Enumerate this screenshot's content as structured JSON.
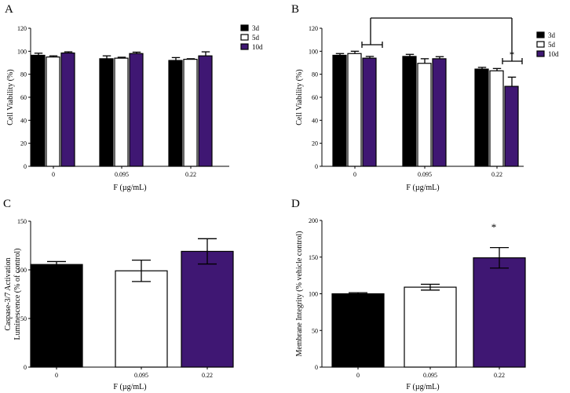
{
  "colors": {
    "series_3d": "#000000",
    "series_5d": "#ffffff",
    "series_10d": "#3f1773",
    "axis": "#000000"
  },
  "chart_data": [
    {
      "panel": "A",
      "type": "bar",
      "categories": [
        "0",
        "0.095",
        "0.22"
      ],
      "xlabel": "F (µg/mL)",
      "ylabel": "Cell Viability (%)",
      "ylim": [
        0,
        120
      ],
      "yticks": [
        "0",
        "20",
        "40",
        "60",
        "80",
        "100",
        "120"
      ],
      "legend": "right",
      "series": [
        {
          "name": "3d",
          "values": [
            96.5,
            93.5,
            92
          ],
          "errors": [
            1.8,
            2.5,
            2.5
          ]
        },
        {
          "name": "5d",
          "values": [
            95,
            94,
            93
          ],
          "errors": [
            1,
            0.8,
            0.5
          ]
        },
        {
          "name": "10d",
          "values": [
            98.5,
            98,
            96
          ],
          "errors": [
            1,
            1.2,
            3.5
          ]
        }
      ],
      "annotations": []
    },
    {
      "panel": "B",
      "type": "bar",
      "categories": [
        "0",
        "0.095",
        "0.22"
      ],
      "xlabel": "F (µg/mL)",
      "ylabel": "Cell Viability (%)",
      "ylim": [
        0,
        120
      ],
      "yticks": [
        "0",
        "20",
        "40",
        "60",
        "80",
        "100",
        "120"
      ],
      "legend": "right",
      "series": [
        {
          "name": "3d",
          "values": [
            96.5,
            95.5,
            84.5
          ],
          "errors": [
            1.5,
            1.8,
            1.5
          ]
        },
        {
          "name": "5d",
          "values": [
            98,
            89.5,
            83
          ],
          "errors": [
            2,
            4,
            2
          ]
        },
        {
          "name": "10d",
          "values": [
            94,
            93.5,
            69.5
          ],
          "errors": [
            1.5,
            1.8,
            8
          ]
        }
      ],
      "annotations": [
        {
          "text": "*",
          "near": "0.22 / 10d"
        }
      ]
    },
    {
      "panel": "C",
      "type": "bar",
      "categories": [
        "0",
        "0.095",
        "0.22"
      ],
      "xlabel": "F (µg/mL)",
      "ylabel": "Caspase-3/7 Activation Luminescence (% of control)",
      "ylabel_lines": [
        "Caspase-3/7 Activation",
        "Luminescence (% of control)"
      ],
      "ylim": [
        0,
        150
      ],
      "yticks": [
        "0",
        "50",
        "100",
        "150"
      ],
      "values": [
        105.5,
        99,
        119
      ],
      "errors": [
        3,
        11,
        13
      ],
      "annotations": []
    },
    {
      "panel": "D",
      "type": "bar",
      "categories": [
        "0",
        "0.095",
        "0.22"
      ],
      "xlabel": "F (µg/mL)",
      "ylabel": "Membrane Integrity (% vehicle control)",
      "ylim": [
        0,
        200
      ],
      "yticks": [
        "0",
        "50",
        "100",
        "150",
        "200"
      ],
      "values": [
        100,
        109,
        149
      ],
      "errors": [
        1.5,
        4,
        14
      ],
      "annotations": [
        {
          "text": "*",
          "near": "0.22"
        }
      ]
    }
  ]
}
